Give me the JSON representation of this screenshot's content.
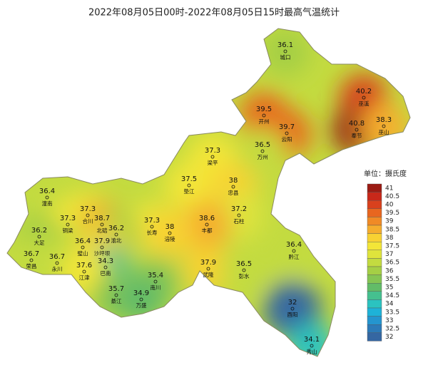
{
  "title": "2022年08月05日00时-2022年08月05日15时最高气温统计",
  "stations": [
    {
      "name": "城口",
      "value": 36.1
    },
    {
      "name": "开州",
      "value": 39.5
    },
    {
      "name": "巫溪",
      "value": 40.2
    },
    {
      "name": "奉节",
      "value": 40.8
    },
    {
      "name": "巫山",
      "value": 38.3
    },
    {
      "name": "云阳",
      "value": 39.7
    },
    {
      "name": "万州",
      "value": 36.5
    },
    {
      "name": "梁平",
      "value": 37.3
    },
    {
      "name": "垫江",
      "value": 37.5
    },
    {
      "name": "忠县",
      "value": 38
    },
    {
      "name": "潼南",
      "value": 36.4
    },
    {
      "name": "石柱",
      "value": 37.2
    },
    {
      "name": "丰都",
      "value": 38.6
    },
    {
      "name": "长寿",
      "value": 37.3
    },
    {
      "name": "涪陵",
      "value": 38
    },
    {
      "name": "合川",
      "value": 37.3
    },
    {
      "name": "铜梁",
      "value": 37.3
    },
    {
      "name": "北碚",
      "value": 38.7
    },
    {
      "name": "渝北",
      "value": 36.2
    },
    {
      "name": "大足",
      "value": 36.2
    },
    {
      "name": "璧山",
      "value": 36.4
    },
    {
      "name": "沙坪坝",
      "value": 37.9
    },
    {
      "name": "荣昌",
      "value": 36.7
    },
    {
      "name": "永川",
      "value": 36.7
    },
    {
      "name": "巴南",
      "value": 34.3
    },
    {
      "name": "江津",
      "value": 37.6
    },
    {
      "name": "武隆",
      "value": 37.9
    },
    {
      "name": "彭水",
      "value": 36.5
    },
    {
      "name": "黔江",
      "value": 36.4
    },
    {
      "name": "南川",
      "value": 35.4
    },
    {
      "name": "綦江",
      "value": 35.7
    },
    {
      "name": "万盛",
      "value": 34.9
    },
    {
      "name": "酉阳",
      "value": 32
    },
    {
      "name": "秀山",
      "value": 34.1
    }
  ],
  "legend": {
    "title": "单位：摄氏度",
    "ticks": [
      41,
      40.5,
      40,
      39.5,
      39,
      38.5,
      38,
      37.5,
      37,
      36.5,
      36,
      35.5,
      35,
      34.5,
      34,
      33.5,
      33,
      32.5,
      32
    ],
    "colors": [
      "#9b1b13",
      "#c8281a",
      "#d9411d",
      "#e8661f",
      "#f08a26",
      "#f5ad2e",
      "#f8d233",
      "#f3e638",
      "#dfe43c",
      "#c3db40",
      "#a5cf45",
      "#85c553",
      "#62bc68",
      "#45c08f",
      "#2bc3c0",
      "#1eb2d8",
      "#2495cf",
      "#2c7ab8",
      "#3567a2"
    ]
  }
}
